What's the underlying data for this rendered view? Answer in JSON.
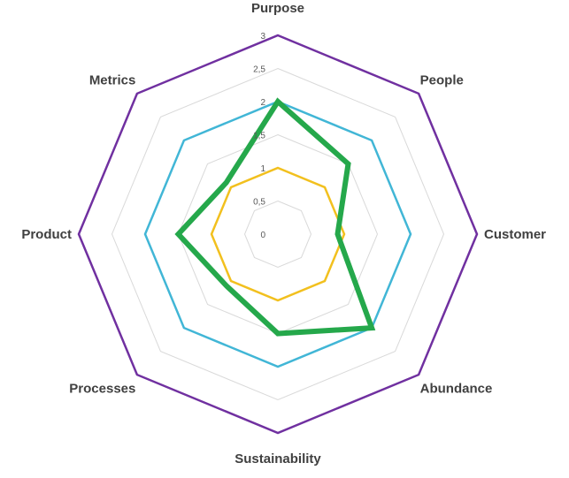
{
  "chart_data": {
    "type": "radar",
    "categories": [
      "Purpose",
      "People",
      "Customer",
      "Abundance",
      "Sustainability",
      "Processes",
      "Product",
      "Metrics"
    ],
    "ticks": [
      "0",
      "0,5",
      "1",
      "1,5",
      "2",
      "2,5",
      "3"
    ],
    "rlim": [
      0,
      3
    ],
    "grid": true,
    "reference_levels": [
      {
        "level": 1,
        "color": "#f2c01e"
      },
      {
        "level": 2,
        "color": "#41b6d6"
      },
      {
        "level": 3,
        "color": "#7030a0"
      }
    ],
    "series": [
      {
        "values": [
          2,
          1.5,
          0.9,
          2,
          1.5,
          1.1,
          1.5,
          1.1
        ],
        "color": "#25a84b"
      }
    ]
  }
}
